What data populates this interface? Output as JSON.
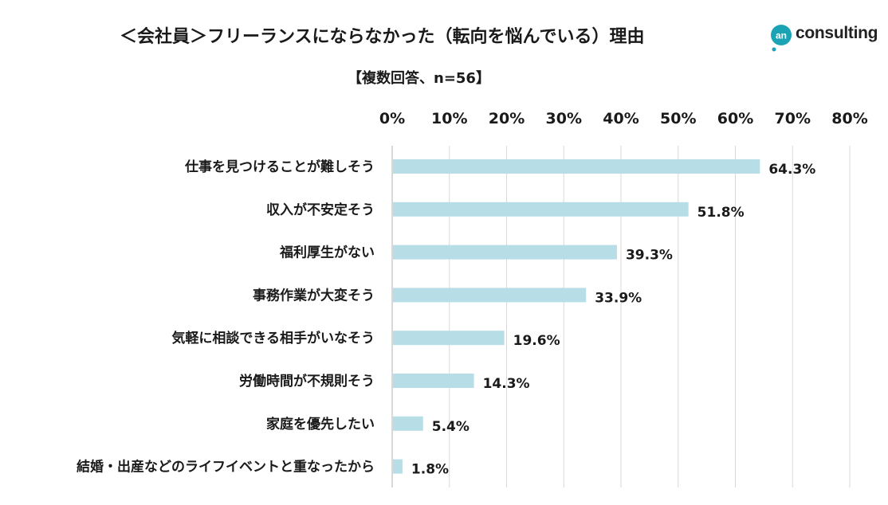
{
  "header": {
    "title": "＜会社員＞フリーランスにならなかった（転向を悩んでいる）理由",
    "subtitle": "【複数回答、n=56】"
  },
  "logo": {
    "mark": "an",
    "text": "consulting",
    "color": "#1aa3b5"
  },
  "chart_data": {
    "type": "bar",
    "orientation": "horizontal",
    "title": "＜会社員＞フリーランスにならなかった（転向を悩んでいる）理由",
    "subtitle": "【複数回答、n=56】",
    "categories": [
      "仕事を見つけることが難しそう",
      "収入が不安定そう",
      "福利厚生がない",
      "事務作業が大変そう",
      "気軽に相談できる相手がいなそう",
      "労働時間が不規則そう",
      "家庭を優先したい",
      "結婚・出産などのライフイベントと重なったから"
    ],
    "values": [
      64.3,
      51.8,
      39.3,
      33.9,
      19.6,
      14.3,
      5.4,
      1.8
    ],
    "value_labels": [
      "64.3%",
      "51.8%",
      "39.3%",
      "33.9%",
      "19.6%",
      "14.3%",
      "5.4%",
      "1.8%"
    ],
    "xlim": [
      0,
      80
    ],
    "ticks": [
      0,
      10,
      20,
      30,
      40,
      50,
      60,
      70,
      80
    ],
    "tick_labels": [
      "0%",
      "10%",
      "20%",
      "30%",
      "40%",
      "50%",
      "60%",
      "70%",
      "80%"
    ],
    "xaxis_position": "top",
    "grid": true,
    "colors": {
      "bar": "#b7dde6",
      "grid": "#d9d9d9",
      "axis": "#bfbfbf",
      "text": "#1a1a1a"
    }
  }
}
